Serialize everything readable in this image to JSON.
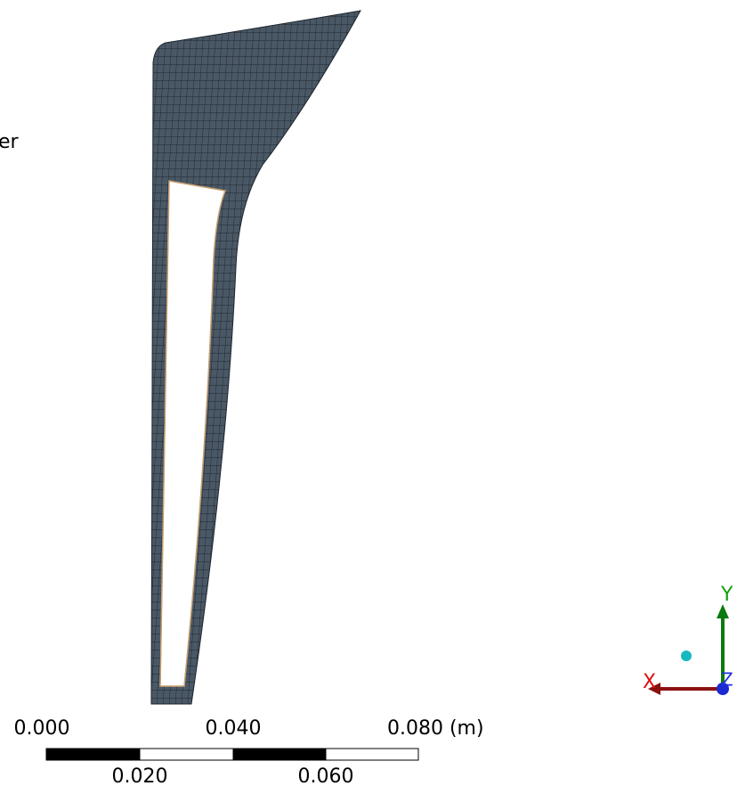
{
  "viewport": {
    "partial_label": "er"
  },
  "scale_bar": {
    "top_labels": [
      "0.000",
      "0.040",
      "0.080 (m)"
    ],
    "bottom_labels": [
      "0.020",
      "0.060"
    ]
  },
  "triad": {
    "x_label": "X",
    "y_label": "Y",
    "z_label": "Z"
  }
}
